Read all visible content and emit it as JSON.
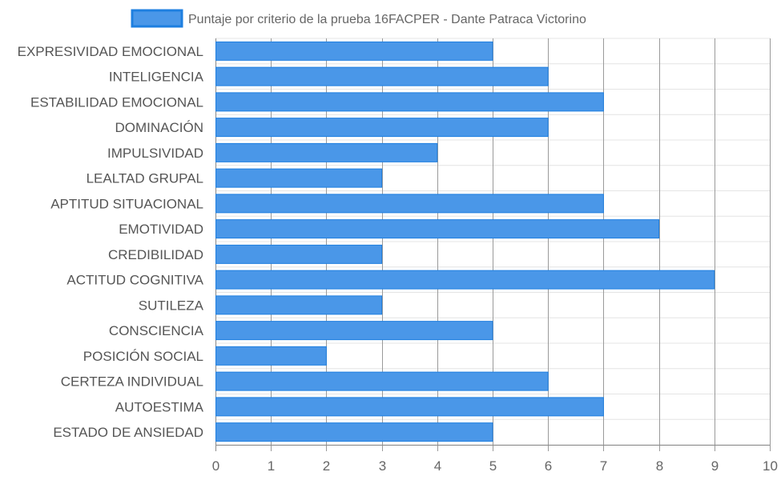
{
  "chart_data": {
    "type": "bar",
    "orientation": "horizontal",
    "categories": [
      "EXPRESIVIDAD EMOCIONAL",
      "INTELIGENCIA",
      "ESTABILIDAD EMOCIONAL",
      "DOMINACIÓN",
      "IMPULSIVIDAD",
      "LEALTAD GRUPAL",
      "APTITUD SITUACIONAL",
      "EMOTIVIDAD",
      "CREDIBILIDAD",
      "ACTITUD COGNITIVA",
      "SUTILEZA",
      "CONSCIENCIA",
      "POSICIÓN SOCIAL",
      "CERTEZA INDIVIDUAL",
      "AUTOESTIMA",
      "ESTADO DE ANSIEDAD"
    ],
    "series": [
      {
        "name": "Puntaje por criterio de la prueba 16FACPER - Dante Patraca Victorino",
        "values": [
          5,
          6,
          7,
          6,
          4,
          3,
          7,
          8,
          3,
          9,
          3,
          5,
          2,
          6,
          7,
          5
        ],
        "color": "#4a97e8",
        "border_color": "#1e7fe0"
      }
    ],
    "xlim": [
      0,
      10
    ],
    "xticks": [
      "0",
      "1",
      "2",
      "3",
      "4",
      "5",
      "6",
      "7",
      "8",
      "9",
      "10"
    ],
    "grid": true,
    "legend_position": "top-center",
    "title": "",
    "xlabel": "",
    "ylabel": ""
  }
}
